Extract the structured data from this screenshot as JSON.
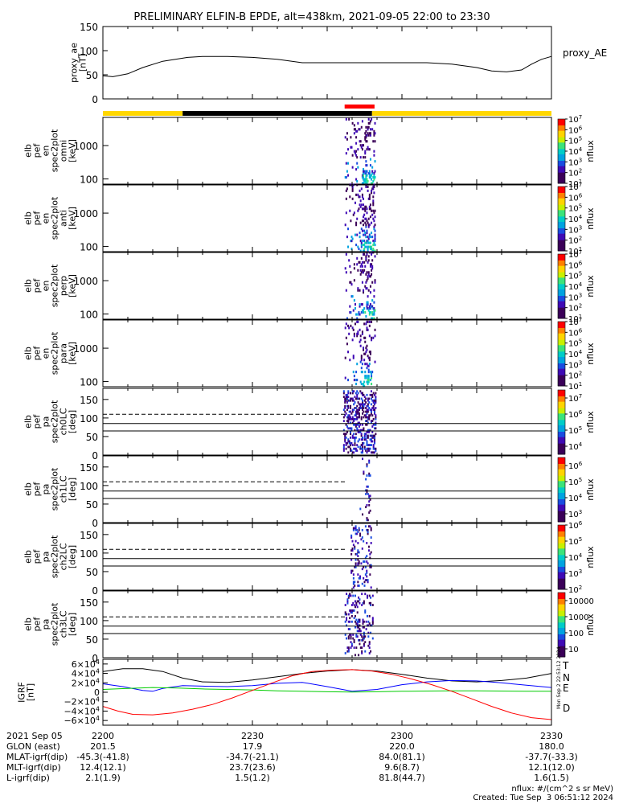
{
  "title": "PRELIMINARY ELFIN-B EPDE, alt=438km, 2021-09-05 22:00 to 23:30",
  "chart_data": [
    {
      "type": "line",
      "ylabel": "proxy_ae [nT]",
      "ylabel_lines": [
        "proxy_ae",
        "[nT]"
      ],
      "yticks": [
        "0",
        "50",
        "100",
        "150"
      ],
      "ylim": [
        0,
        150
      ],
      "legend": "proxy_AE",
      "color": "#000000",
      "x_minutes": [
        0,
        2,
        5,
        8,
        12,
        17,
        20,
        25,
        30,
        35,
        40,
        45,
        50,
        55,
        60,
        65,
        70,
        75,
        78,
        81,
        84,
        86,
        88,
        90
      ],
      "y": [
        48,
        46,
        52,
        65,
        78,
        86,
        88,
        88,
        86,
        82,
        75,
        75,
        75,
        75,
        75,
        75,
        72,
        65,
        58,
        56,
        60,
        72,
        82,
        88
      ]
    },
    {
      "type": "heatmap",
      "ylabel_lines": [
        "elb",
        "pef",
        "en",
        "spec2plot",
        "omni",
        "[keV]"
      ],
      "yticks": [
        "100",
        "1000"
      ],
      "colorbar_label": "nflux",
      "colorbar_ticks": [
        "10^1",
        "10^2",
        "10^3",
        "10^4",
        "10^5",
        "10^6",
        "10^7"
      ]
    },
    {
      "type": "heatmap",
      "ylabel_lines": [
        "elb",
        "pef",
        "en",
        "spec2plot",
        "anti",
        "[keV]"
      ],
      "yticks": [
        "100",
        "1000"
      ],
      "colorbar_label": "nflux",
      "colorbar_ticks": [
        "10^1",
        "10^2",
        "10^3",
        "10^4",
        "10^5",
        "10^6",
        "10^7"
      ]
    },
    {
      "type": "heatmap",
      "ylabel_lines": [
        "elb",
        "pef",
        "en",
        "spec2plot",
        "perp",
        "[keV]"
      ],
      "yticks": [
        "100",
        "1000"
      ],
      "colorbar_label": "nflux",
      "colorbar_ticks": [
        "10^1",
        "10^2",
        "10^3",
        "10^4",
        "10^5",
        "10^6",
        "10^7"
      ]
    },
    {
      "type": "heatmap",
      "ylabel_lines": [
        "elb",
        "pef",
        "en",
        "spec2plot",
        "para",
        "[keV]"
      ],
      "yticks": [
        "100",
        "1000"
      ],
      "colorbar_label": "nflux",
      "colorbar_ticks": [
        "10^1",
        "10^2",
        "10^3",
        "10^4",
        "10^5",
        "10^6",
        "10^7"
      ]
    },
    {
      "type": "heatmap",
      "ylabel_lines": [
        "elb",
        "pef",
        "pa",
        "spec2plot",
        "ch0LC",
        "[deg]"
      ],
      "yticks": [
        "0",
        "50",
        "100",
        "150"
      ],
      "ylim": [
        0,
        180
      ],
      "colorbar_label": "nflux",
      "colorbar_ticks": [
        "10^4",
        "10^5",
        "10^6",
        "10^7"
      ]
    },
    {
      "type": "heatmap",
      "ylabel_lines": [
        "elb",
        "pef",
        "pa",
        "spec2plot",
        "ch1LC",
        "[deg]"
      ],
      "yticks": [
        "0",
        "50",
        "100",
        "150"
      ],
      "ylim": [
        0,
        180
      ],
      "colorbar_label": "nflux",
      "colorbar_ticks": [
        "10^3",
        "10^4",
        "10^5",
        "10^6"
      ]
    },
    {
      "type": "heatmap",
      "ylabel_lines": [
        "elb",
        "pef",
        "pa",
        "spec2plot",
        "ch2LC",
        "[deg]"
      ],
      "yticks": [
        "0",
        "50",
        "100",
        "150"
      ],
      "ylim": [
        0,
        180
      ],
      "colorbar_label": "nflux",
      "colorbar_ticks": [
        "10^2",
        "10^3",
        "10^4",
        "10^5",
        "10^6"
      ]
    },
    {
      "type": "heatmap",
      "ylabel_lines": [
        "elb",
        "pef",
        "pa",
        "spec2plot",
        "ch3LC",
        "[deg]"
      ],
      "yticks": [
        "0",
        "50",
        "100",
        "150"
      ],
      "ylim": [
        0,
        180
      ],
      "colorbar_label": "nflux",
      "colorbar_ticks": [
        "10",
        "100",
        "1000",
        "10000"
      ]
    },
    {
      "type": "line",
      "ylabel_lines": [
        "IGRF",
        "[nT]"
      ],
      "yticks": [
        "−6×10^4",
        "−4×10^4",
        "−2×10^4",
        "0",
        "2×10^4",
        "4×10^4",
        "6×10^4"
      ],
      "ylim": [
        -70000,
        70000
      ],
      "series": [
        {
          "name": "T",
          "color": "#000000",
          "x_minutes": [
            0,
            4,
            8,
            12,
            16,
            20,
            25,
            30,
            35,
            40,
            45,
            50,
            55,
            60,
            65,
            70,
            75,
            80,
            85,
            90
          ],
          "y": [
            44000,
            50000,
            50000,
            44000,
            30000,
            22000,
            21000,
            26000,
            33000,
            40000,
            45000,
            48000,
            45000,
            38000,
            30000,
            24000,
            22000,
            25000,
            30000,
            40000
          ]
        },
        {
          "name": "N",
          "color": "#0000ff",
          "x_minutes": [
            0,
            4,
            8,
            10,
            12,
            16,
            20,
            25,
            30,
            35,
            40,
            45,
            50,
            55,
            60,
            65,
            70,
            75,
            80,
            85,
            90
          ],
          "y": [
            18000,
            12000,
            4000,
            2000,
            8000,
            14000,
            13000,
            12000,
            14000,
            19000,
            21000,
            12000,
            2000,
            6000,
            16000,
            22000,
            25000,
            24000,
            20000,
            15000,
            10000
          ]
        },
        {
          "name": "E",
          "color": "#00cc00",
          "x_minutes": [
            0,
            5,
            10,
            15,
            20,
            25,
            30,
            35,
            40,
            45,
            50,
            55,
            60,
            65,
            70,
            75,
            80,
            85,
            90
          ],
          "y": [
            6000,
            8000,
            10000,
            9000,
            7000,
            6000,
            5000,
            3000,
            2000,
            1000,
            500,
            1000,
            2000,
            2500,
            3000,
            3000,
            2500,
            2000,
            2000
          ]
        },
        {
          "name": "D",
          "color": "#ff0000",
          "x_minutes": [
            0,
            3,
            6,
            10,
            14,
            18,
            22,
            26,
            30,
            34,
            38,
            42,
            46,
            50,
            54,
            58,
            62,
            66,
            70,
            74,
            78,
            82,
            86,
            90
          ],
          "y": [
            -30000,
            -40000,
            -47000,
            -48000,
            -44000,
            -36000,
            -26000,
            -12000,
            4000,
            20000,
            35000,
            44000,
            47000,
            48000,
            45000,
            38000,
            28000,
            16000,
            2000,
            -14000,
            -30000,
            -44000,
            -54000,
            -58000
          ]
        }
      ]
    }
  ],
  "spectro_colors": [
    "#000000",
    "#3b0058",
    "#3f0ab5",
    "#1a4ce0",
    "#00a3e0",
    "#00ccc8",
    "#3ce37a",
    "#c8f000",
    "#ffd400",
    "#ff8000",
    "#ff0000"
  ],
  "status_bar": {
    "colors": {
      "yellow": "#ffd700",
      "black": "#000000",
      "red": "#ff0000"
    }
  },
  "x_axis": {
    "row_labels": [
      "2021 Sep 05",
      "GLON (east)",
      "MLAT-igrf(dip)",
      "MLT-igrf(dip)",
      "L-igrf(dip)"
    ],
    "columns": [
      {
        "time": "2200",
        "glon": "201.5",
        "mlat": "-45.3(-41.8)",
        "mlt": "12.4(12.1)",
        "l": "2.1(1.9)"
      },
      {
        "time": "2230",
        "glon": "17.9",
        "mlat": "-34.7(-21.1)",
        "mlt": "23.7(23.6)",
        "l": "1.5(1.2)"
      },
      {
        "time": "2300",
        "glon": "220.0",
        "mlat": "84.0(81.1)",
        "mlt": "9.6(8.7)",
        "l": "81.8(44.7)"
      },
      {
        "time": "2330",
        "glon": "180.0",
        "mlat": "-37.7(-33.3)",
        "mlt": "12.1(12.0)",
        "l": "1.6(1.5)"
      }
    ]
  },
  "side_stamp": "Mon Sep  2 22:53:12 2024",
  "footer": {
    "units": "nflux: #/(cm^2 s sr MeV)",
    "created": "Created: Tue Sep  3 06:51:12 2024"
  }
}
